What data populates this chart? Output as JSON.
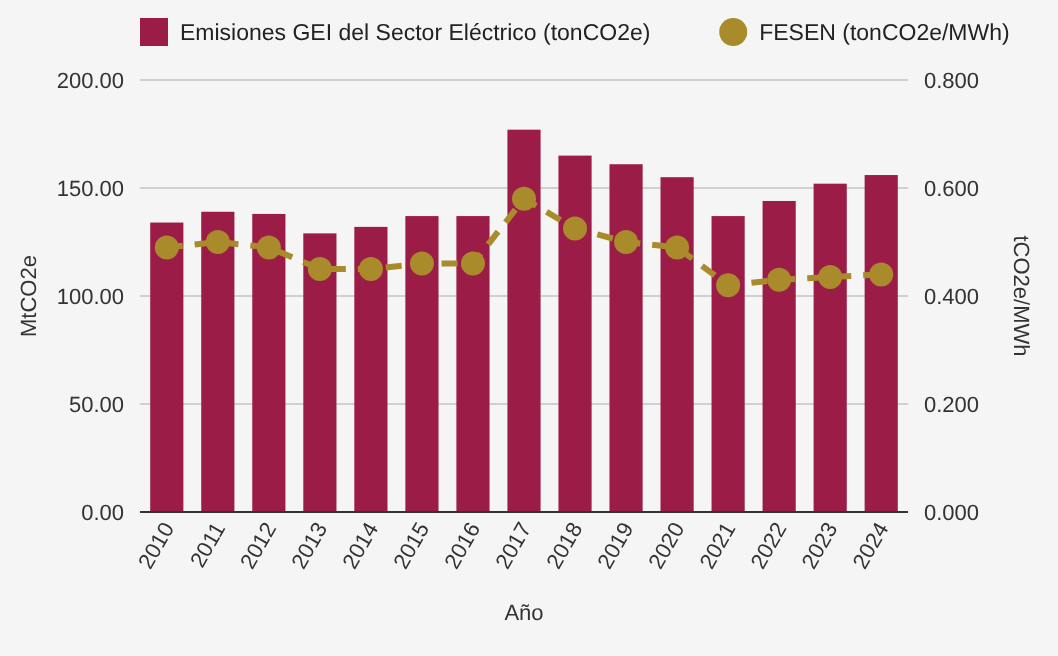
{
  "chart_data": {
    "type": "bar",
    "xlabel": "Año",
    "ylabel": "MtCO2e",
    "y2label": "tCO2e/MWh",
    "categories": [
      "2010",
      "2011",
      "2012",
      "2013",
      "2014",
      "2015",
      "2016",
      "2017",
      "2018",
      "2019",
      "2020",
      "2021",
      "2022",
      "2023",
      "2024"
    ],
    "series": [
      {
        "name": "Emisiones GEI del Sector Eléctrico (tonCO2e)",
        "color": "#9c1c48",
        "values": [
          134,
          139,
          138,
          129,
          132,
          137,
          137,
          177,
          165,
          161,
          155,
          137,
          144,
          152,
          156
        ]
      },
      {
        "name": "FESEN (tonCO2e/MWh)",
        "type": "line",
        "axis": "y2",
        "color": "#a98b2c",
        "marker": "circle",
        "line_style": "dashed",
        "values": [
          0.49,
          0.5,
          0.49,
          0.45,
          0.45,
          0.46,
          0.46,
          0.58,
          0.525,
          0.5,
          0.49,
          0.42,
          0.43,
          0.435,
          0.44
        ]
      }
    ],
    "ylim": [
      0,
      200
    ],
    "yticks": [
      {
        "value": 0,
        "label": "0.00"
      },
      {
        "value": 50,
        "label": "50.00"
      },
      {
        "value": 100,
        "label": "100.00"
      },
      {
        "value": 150,
        "label": "150.00"
      },
      {
        "value": 200,
        "label": "200.00"
      }
    ],
    "y2lim": [
      0,
      0.8
    ],
    "y2ticks": [
      {
        "value": 0,
        "label": "0.000"
      },
      {
        "value": 0.2,
        "label": "0.200"
      },
      {
        "value": 0.4,
        "label": "0.400"
      },
      {
        "value": 0.6,
        "label": "0.600"
      },
      {
        "value": 0.8,
        "label": "0.800"
      }
    ],
    "grid": "y",
    "legend": "top"
  }
}
